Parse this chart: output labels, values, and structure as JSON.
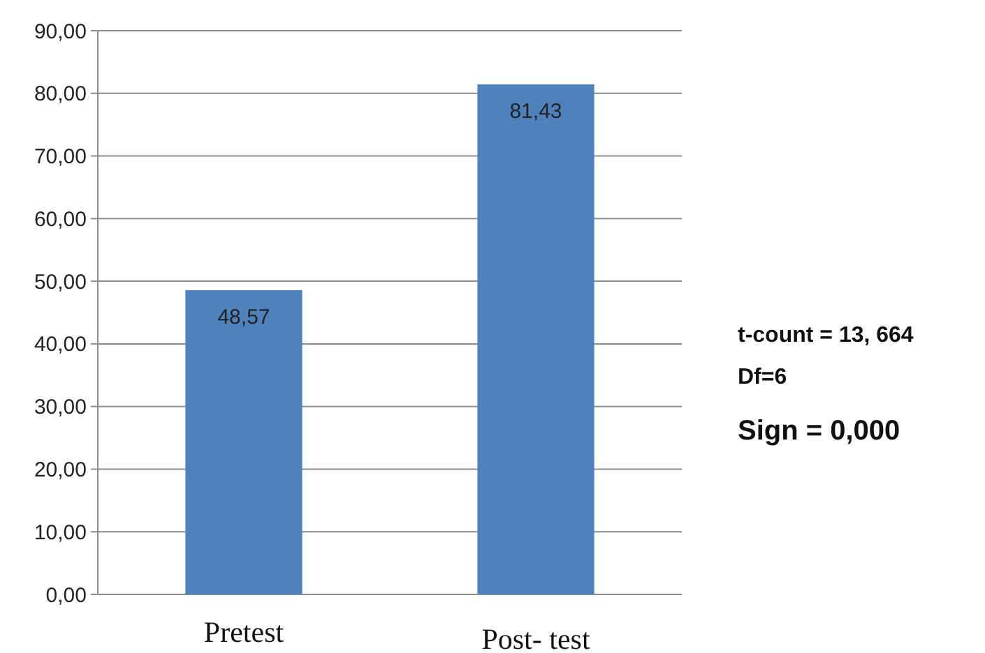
{
  "chart_data": {
    "type": "bar",
    "categories": [
      "Pretest",
      "Post- test"
    ],
    "values": [
      48.57,
      81.43
    ],
    "color": "#4f81bd",
    "value_labels": [
      "48,57",
      "81,43"
    ],
    "ylim": [
      0,
      90
    ],
    "yticks": [
      {
        "value": 0,
        "label": "0,00"
      },
      {
        "value": 10,
        "label": "10,00"
      },
      {
        "value": 20,
        "label": "20,00"
      },
      {
        "value": 30,
        "label": "30,00"
      },
      {
        "value": 40,
        "label": "40,00"
      },
      {
        "value": 50,
        "label": "50,00"
      },
      {
        "value": 60,
        "label": "60,00"
      },
      {
        "value": 70,
        "label": "70,00"
      },
      {
        "value": 80,
        "label": "80,00"
      },
      {
        "value": 90,
        "label": "90,00"
      }
    ],
    "grid": "y",
    "annotations": [
      "t-count = 13, 664",
      "Df=6",
      "Sign = 0,000"
    ]
  }
}
